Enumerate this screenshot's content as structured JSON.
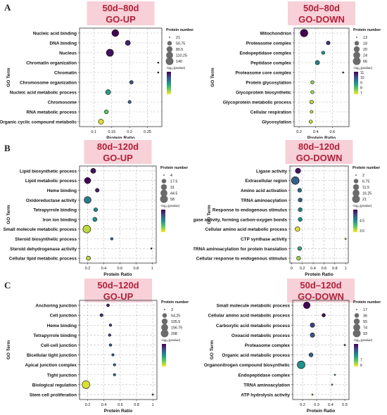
{
  "panels": [
    {
      "letter": "A"
    },
    {
      "letter": "B"
    },
    {
      "letter": "C"
    }
  ],
  "colors": {
    "title_bg": "#f7d0d8",
    "title_text": "#b0203a",
    "grid": "#bfbfbf",
    "bubble_stroke": "#111111"
  },
  "colorbar_stops": [
    "#440154",
    "#3b528b",
    "#21918c",
    "#5ec962",
    "#fde725"
  ],
  "chart_data": [
    {
      "type": "scatter",
      "title": "50d–80d",
      "subtitle": "GO-UP",
      "xlabel": "Protein Ratio",
      "ylabel": "GO Term",
      "xlim": [
        0.06,
        0.29
      ],
      "xticks": [
        0.1,
        0.15,
        0.2,
        0.25
      ],
      "xticklabels": [
        "0.1",
        "0.15",
        "0.2",
        "0.25"
      ],
      "size_legend_title": "Protein number",
      "size_legend": [
        "21",
        "50.75",
        "80.5",
        "110.25",
        "140"
      ],
      "size_range": [
        21,
        140
      ],
      "color_legend_title": "-log₁₀(pvalue)",
      "color_ticks": [
        "",
        "",
        "",
        "",
        ""
      ],
      "categories": [
        "Nucleic acid binding",
        "DNA binding",
        "Nucleus",
        "Chromatin organization",
        "Chromatin",
        "Chromosome organization",
        "Nucleic acid metabolic process",
        "Chromosome",
        "RNA metabolic process",
        "Organic cyclic compound metabolic"
      ],
      "x": [
        0.16,
        0.195,
        0.145,
        0.28,
        0.28,
        0.205,
        0.14,
        0.2,
        0.135,
        0.12
      ],
      "size": [
        110,
        60,
        120,
        21,
        21,
        35,
        60,
        30,
        40,
        60
      ],
      "color": [
        0.0,
        0.1,
        0.05,
        0.2,
        0.15,
        0.25,
        0.55,
        0.3,
        0.75,
        0.95
      ]
    },
    {
      "type": "scatter",
      "title": "50d–80d",
      "subtitle": "GO-DOWN",
      "xlabel": "Protein Ratio",
      "ylabel": "GO Term",
      "xlim": [
        0.14,
        0.8
      ],
      "xticks": [
        0.2,
        0.4,
        0.6
      ],
      "xticklabels": [
        "0.2",
        "0.4",
        "0.6"
      ],
      "size_legend_title": "Protein number",
      "size_legend": [
        "13",
        "18",
        "20",
        "24",
        "66"
      ],
      "size_range": [
        13,
        66
      ],
      "color_legend_title": "-log₁₀(pvalue)",
      "color_ticks": [
        "11",
        "10",
        "9",
        "8",
        "7"
      ],
      "categories": [
        "Mitochondrion",
        "Proteasome complex",
        "Endopeptidase complex",
        "Peptidase complex",
        "Proteasome core complex",
        "Protein glycosylation",
        "Glycoprotein biosynthetic",
        "Glycoprotein metabolic process",
        "Cellular respiration",
        "Glycosylation"
      ],
      "x": [
        0.26,
        0.55,
        0.49,
        0.42,
        0.73,
        0.36,
        0.36,
        0.35,
        0.35,
        0.34
      ],
      "size": [
        62,
        20,
        18,
        24,
        13,
        18,
        18,
        20,
        16,
        18
      ],
      "color": [
        0.0,
        0.15,
        0.5,
        0.45,
        0.2,
        0.8,
        0.85,
        0.9,
        0.9,
        0.92
      ]
    },
    {
      "type": "scatter",
      "title": "80d–120d",
      "subtitle": "GO-UP",
      "xlabel": "Protein Ratio",
      "ylabel": "GO Term",
      "xlim": [
        0.1,
        1.05
      ],
      "xticks": [
        0.2,
        0.4,
        0.6,
        0.8,
        1
      ],
      "xticklabels": [
        "0.2",
        "0.4",
        "0.6",
        "0.8",
        "1"
      ],
      "size_legend_title": "Protein number",
      "size_legend": [
        "4",
        "17.5",
        "31",
        "44.5",
        "58"
      ],
      "size_range": [
        4,
        58
      ],
      "color_legend_title": "-log₁₀(pvalue)",
      "color_ticks": [
        "",
        "",
        "",
        "",
        ""
      ],
      "categories": [
        "Lipid biosynthetic process",
        "Lipid metabolic process",
        "Heme binding",
        "Oxidoreductase activity",
        "Tetrapyrrole binding",
        "Iron ion binding",
        "Small molecule metabolic process",
        "Steroid biosynthetic process",
        "Steroid dehydrogenase activity",
        "Cellular lipid metabolic process"
      ],
      "x": [
        0.27,
        0.2,
        0.32,
        0.2,
        0.3,
        0.29,
        0.19,
        0.5,
        0.99,
        0.21
      ],
      "size": [
        22,
        35,
        12,
        45,
        12,
        14,
        58,
        6,
        4,
        14
      ],
      "color": [
        0.05,
        0.0,
        0.1,
        0.4,
        0.45,
        0.5,
        0.9,
        0.3,
        0.2,
        0.9
      ]
    },
    {
      "type": "scatter",
      "title": "80d–120d",
      "subtitle": "GO-DOWN",
      "xlabel": "Protein Ratio",
      "ylabel": "GO Term",
      "xlim": [
        -0.03,
        1.05
      ],
      "xticks": [
        0,
        0.2,
        0.4,
        0.6,
        0.8,
        1
      ],
      "xticklabels": [
        "0",
        "0.2",
        "0.4",
        "0.6",
        "0.8",
        "1"
      ],
      "size_legend_title": "Protein number",
      "size_legend": [
        "2",
        "6.75",
        "11.5",
        "16.25",
        "21"
      ],
      "size_range": [
        2,
        21
      ],
      "color_legend_title": "-log₁₀(pvalue)",
      "color_ticks": [
        "",
        "",
        "4.5",
        "",
        "3.5"
      ],
      "categories": [
        "Ligase activity",
        "Extracellular region",
        "Amino acid activation",
        "TRNA aminoacylation",
        "Response to endogenous stimulus",
        "Ligase activity, forming carbon-oxygen bonds",
        "Cellular amino acid metabolic process",
        "CTP synthase activity",
        "TRNA aminoacylation for protein translation",
        "Cellular response to endogenous stimulus"
      ],
      "x": [
        0.12,
        0.07,
        0.15,
        0.16,
        0.16,
        0.16,
        0.11,
        1.0,
        0.15,
        0.13
      ],
      "size": [
        9,
        21,
        5,
        5,
        5,
        5,
        7,
        2,
        5,
        5
      ],
      "color": [
        0.05,
        0.3,
        0.35,
        0.3,
        0.45,
        0.5,
        0.95,
        0.9,
        0.6,
        0.85
      ]
    },
    {
      "type": "scatter",
      "title": "50d–120d",
      "subtitle": "GO-UP",
      "xlabel": "Protein Ratio",
      "ylabel": "GO Term",
      "xlim": [
        0.1,
        1.05
      ],
      "xticks": [
        0.2,
        0.4,
        0.6,
        0.8,
        1
      ],
      "xticklabels": [
        "0.2",
        "0.4",
        "0.6",
        "0.8",
        "1"
      ],
      "size_legend_title": "Protein number",
      "size_legend": [
        "3",
        "54.25",
        "105.5",
        "156.75",
        "208"
      ],
      "size_range": [
        3,
        208
      ],
      "color_legend_title": "-log₁₀(pvalue)",
      "color_ticks": [
        "",
        "",
        "",
        "",
        ""
      ],
      "categories": [
        "Anchoring junction",
        "Cell junction",
        "Heme binding",
        "Tetrapyrrole binding",
        "Cell-cell junction",
        "Bicellular tight junction",
        "Apical junction complex",
        "Tight junction",
        "Biological regulation",
        "Stem cell proliferation"
      ],
      "x": [
        0.45,
        0.37,
        0.48,
        0.47,
        0.48,
        0.51,
        0.53,
        0.53,
        0.18,
        1.0
      ],
      "size": [
        14,
        18,
        10,
        10,
        10,
        8,
        8,
        8,
        208,
        3
      ],
      "color": [
        0.1,
        0.15,
        0.2,
        0.2,
        0.25,
        0.3,
        0.35,
        0.4,
        0.95,
        0.5
      ]
    },
    {
      "type": "scatter",
      "title": "50d–120d",
      "subtitle": "GO-DOWN",
      "xlabel": "Protein Ratio",
      "ylabel": "GO Term",
      "xlim": [
        0.13,
        0.53
      ],
      "xticks": [
        0.2,
        0.3,
        0.4,
        0.5
      ],
      "xticklabels": [
        "0.2",
        "0.3",
        "0.4",
        "0.5"
      ],
      "size_legend_title": "Protein number",
      "size_legend": [
        "17",
        "36",
        "55",
        "74",
        "93"
      ],
      "size_range": [
        17,
        93
      ],
      "color_legend_title": "-log₁₀(pvalue)",
      "color_ticks": [
        "",
        "",
        "",
        "7",
        "6"
      ],
      "categories": [
        "Small molecule metabolic process",
        "Cellular amino acid metabolic process",
        "Carboxylic acid metabolic process",
        "Oxoacid metabolic process",
        "Proteasome complex",
        "Organic acid metabolic process",
        "Organonitrogen compound biosynthetic",
        "Endopeptidase complex",
        "TRNA aminoacylation",
        "ATP hydrolysis activity"
      ],
      "x": [
        0.23,
        0.35,
        0.27,
        0.27,
        0.5,
        0.26,
        0.19,
        0.43,
        0.41,
        0.27
      ],
      "size": [
        70,
        25,
        35,
        35,
        17,
        30,
        93,
        17,
        17,
        17
      ],
      "color": [
        0.0,
        0.05,
        0.2,
        0.25,
        0.2,
        0.3,
        0.5,
        0.7,
        0.75,
        0.9
      ]
    }
  ]
}
